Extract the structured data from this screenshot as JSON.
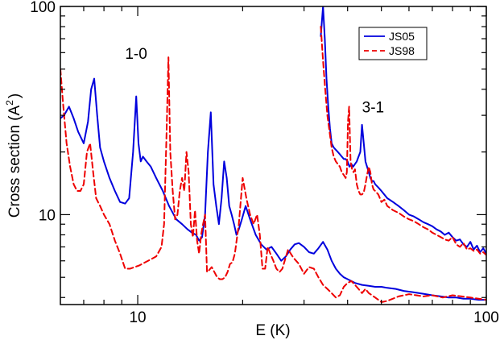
{
  "chart_data": {
    "type": "line",
    "xlabel": "E (K)",
    "ylabel": "Cross section (A",
    "ylabel_sup": "2",
    "ylabel_suffix": ")",
    "x_scale": "log",
    "y_scale": "log",
    "xlim": [
      6,
      100
    ],
    "ylim": [
      3.7,
      100
    ],
    "x_ticks": [
      {
        "value": 10,
        "label": "10"
      },
      {
        "value": 100,
        "label": "100"
      }
    ],
    "y_ticks": [
      {
        "value": 10,
        "label": "10"
      },
      {
        "value": 100,
        "label": "100"
      }
    ],
    "grid": false,
    "legend_position": "top-right",
    "annotations": [
      {
        "text": "1-0",
        "x": 9.2,
        "y": 56
      },
      {
        "text": "3-1",
        "x": 44,
        "y": 31
      }
    ],
    "series": [
      {
        "name": "JS05",
        "color": "#0000dd",
        "dash": "solid",
        "group": "1-0",
        "x": [
          6.0,
          6.15,
          6.35,
          6.55,
          6.75,
          7.0,
          7.2,
          7.35,
          7.5,
          7.65,
          7.8,
          8.0,
          8.3,
          8.6,
          8.9,
          9.2,
          9.45,
          9.7,
          9.9,
          10.05,
          10.2,
          10.35,
          10.6,
          10.9,
          11.3,
          11.8,
          12.3,
          12.9,
          13.4,
          13.9,
          14.3,
          14.7,
          15.0,
          15.3,
          15.6,
          15.9,
          16.2,
          16.5,
          16.8,
          17.1,
          17.4,
          17.7,
          18.0,
          18.3,
          18.6,
          18.9,
          19.2,
          19.5,
          19.9,
          20.4,
          21.0,
          21.8,
          22.6,
          23.4,
          24.2,
          25.0,
          25.8,
          26.6,
          27.4,
          28.2,
          29.0,
          30.0,
          31.0,
          32.0,
          33.0,
          34.0,
          35.0,
          36.0,
          37.0,
          38.0,
          39.0,
          40.0,
          42.0,
          44.0,
          46.0,
          48.0,
          50.0,
          52.0,
          55.0,
          58.0,
          61.0,
          64.0,
          67.0,
          70.0,
          74.0,
          78.0,
          82.0,
          86.0,
          90.0,
          95.0,
          100.0
        ],
        "y": [
          29,
          30,
          33,
          29,
          25,
          22,
          28,
          40,
          45,
          30,
          21,
          18,
          15,
          13,
          11.5,
          11.3,
          12,
          20,
          37,
          22,
          18,
          19,
          18,
          17,
          15,
          13,
          11,
          9.5,
          9,
          8.5,
          8.2,
          8.0,
          7.5,
          7.8,
          10,
          20,
          31,
          14,
          11,
          9,
          12,
          18,
          15,
          11,
          10,
          9,
          8,
          8.5,
          9.5,
          11,
          9.5,
          8.0,
          7.2,
          6.8,
          7.0,
          6.5,
          6.0,
          6.3,
          6.8,
          7.2,
          7.3,
          7.0,
          6.6,
          6.5,
          6.9,
          7.4,
          6.8,
          6.0,
          5.5,
          5.2,
          5.0,
          4.9,
          4.7,
          4.6,
          4.55,
          4.5,
          4.5,
          4.45,
          4.4,
          4.3,
          4.25,
          4.2,
          4.15,
          4.1,
          4.05,
          4.0,
          4.0,
          3.95,
          3.95,
          3.9,
          3.9
        ]
      },
      {
        "name": "JS98",
        "color": "#ee0000",
        "dash": "dashed",
        "group": "1-0",
        "x": [
          6.0,
          6.1,
          6.25,
          6.4,
          6.55,
          6.7,
          6.85,
          7.0,
          7.15,
          7.3,
          7.45,
          7.6,
          7.8,
          8.0,
          8.3,
          8.6,
          8.9,
          9.2,
          9.5,
          9.8,
          10.1,
          10.5,
          10.9,
          11.3,
          11.7,
          11.9,
          12.1,
          12.25,
          12.4,
          12.6,
          12.8,
          13.0,
          13.2,
          13.4,
          13.6,
          13.8,
          14.0,
          14.2,
          14.4,
          14.6,
          14.8,
          15.0,
          15.2,
          15.4,
          15.6,
          15.8,
          16.0,
          16.3,
          16.6,
          16.9,
          17.2,
          17.5,
          17.8,
          18.1,
          18.4,
          18.7,
          19.0,
          19.5,
          20.0,
          20.5,
          21.0,
          21.5,
          22.0,
          22.4,
          22.8,
          23.2,
          23.6,
          24.0,
          24.5,
          25.0,
          25.5,
          26.0,
          27.0,
          28.0,
          29.0,
          30.0,
          31.0,
          32.0,
          33.0,
          34.0,
          35.0,
          36.0,
          37.0,
          38.0,
          39.0,
          40.0,
          41.0,
          42.0,
          43.0,
          44.0,
          45.0,
          46.0,
          47.0,
          48.0,
          49.0,
          50.0,
          52.0,
          54.0,
          56.0,
          58.0,
          60.0,
          63.0,
          66.0,
          70.0,
          75.0,
          80.0,
          85.0,
          90.0,
          95.0,
          100.0
        ],
        "y": [
          50,
          35,
          22,
          17,
          14,
          13,
          13,
          14,
          20,
          22,
          16,
          12,
          11,
          10,
          9,
          7.5,
          6.5,
          5.5,
          5.5,
          5.6,
          5.7,
          5.9,
          6.1,
          6.3,
          7.0,
          9,
          25,
          57,
          20,
          13,
          9.5,
          10,
          13,
          15,
          13,
          20,
          16,
          9,
          7.8,
          10.5,
          7.5,
          6.5,
          8,
          9,
          10,
          5.3,
          5.4,
          5.6,
          5.3,
          5.0,
          4.9,
          4.9,
          5.0,
          5.3,
          5.8,
          5.9,
          6.5,
          9,
          15,
          12,
          10,
          9,
          10,
          8,
          5.5,
          5.5,
          7,
          6.5,
          6.0,
          5.5,
          5.3,
          5.5,
          6.8,
          6.2,
          5.8,
          5.2,
          5.6,
          5.5,
          5.0,
          4.6,
          4.4,
          4.2,
          4.0,
          4.1,
          4.5,
          4.7,
          4.8,
          4.6,
          4.4,
          4.2,
          4.4,
          4.2,
          4.1,
          4.0,
          3.9,
          3.8,
          3.85,
          3.95,
          4.05,
          4.1,
          4.15,
          4.1,
          4.05,
          4.1,
          4.0,
          4.1,
          4.05,
          4.0,
          3.95,
          3.9
        ]
      },
      {
        "name": "JS05",
        "color": "#0000dd",
        "dash": "solid",
        "group": "3-1",
        "x": [
          33.5,
          34.0,
          34.4,
          34.8,
          35.2,
          35.6,
          36.0,
          36.5,
          37.0,
          37.5,
          38.0,
          38.5,
          39.0,
          39.5,
          40.0,
          40.5,
          41.0,
          41.5,
          42.0,
          42.5,
          43.0,
          43.5,
          44.0,
          44.5,
          45.0,
          45.5,
          46.0,
          46.5,
          47.0,
          47.5,
          48.0,
          49.0,
          50.0,
          52.0,
          54.0,
          56.0,
          58.0,
          60.0,
          62.0,
          64.0,
          66.0,
          68.0,
          70.0,
          72.0,
          74.0,
          76.0,
          78.0,
          80.0,
          82.0,
          84.0,
          86.0,
          88.0,
          90.0,
          92.0,
          94.0,
          96.0,
          98.0,
          100.0
        ],
        "y": [
          72,
          100,
          70,
          45,
          33,
          26,
          22,
          21,
          20.5,
          20,
          19.5,
          19,
          18.5,
          18.5,
          18,
          17,
          17.5,
          17,
          17.5,
          18,
          19,
          20,
          27,
          22,
          18,
          17,
          16,
          15,
          14.5,
          14.5,
          14,
          13.5,
          13,
          12,
          11.5,
          11,
          10.5,
          10,
          9.8,
          9.5,
          9.2,
          9.0,
          8.8,
          8.5,
          8.3,
          8.0,
          8.2,
          7.8,
          7.5,
          7.6,
          7.2,
          7.0,
          7.4,
          6.8,
          7.1,
          6.6,
          6.9,
          6.5
        ]
      },
      {
        "name": "JS98",
        "color": "#ee0000",
        "dash": "dashed",
        "group": "3-1",
        "x": [
          33.5,
          34.0,
          34.5,
          35.0,
          35.5,
          36.0,
          36.5,
          37.0,
          37.5,
          38.0,
          38.5,
          39.0,
          39.5,
          39.8,
          40.1,
          40.4,
          40.8,
          41.2,
          41.6,
          42.0,
          42.5,
          43.0,
          43.5,
          44.0,
          44.5,
          45.0,
          45.5,
          46.0,
          46.5,
          47.0,
          47.5,
          48.0,
          49.0,
          50.0,
          51.0,
          52.0,
          54.0,
          56.0,
          58.0,
          60.0,
          62.0,
          64.0,
          66.0,
          68.0,
          70.0,
          72.0,
          74.0,
          76.0,
          78.0,
          80.0,
          82.0,
          84.0,
          86.0,
          88.0,
          90.0,
          92.0,
          94.0,
          96.0,
          98.0,
          100.0
        ],
        "y": [
          80,
          55,
          40,
          30,
          25,
          21,
          19,
          18,
          17.5,
          17,
          16,
          15.5,
          15,
          16,
          28,
          33,
          18,
          16.5,
          16,
          16.5,
          14,
          13,
          12.5,
          12.5,
          12.8,
          14,
          15.5,
          17,
          16,
          14,
          13.2,
          13,
          12.5,
          11.5,
          11.8,
          11,
          10.5,
          10.2,
          9.8,
          9.5,
          9.3,
          9.0,
          8.7,
          8.5,
          8.2,
          8.0,
          7.8,
          7.6,
          7.5,
          7.8,
          7.2,
          7.0,
          7.3,
          6.8,
          6.9,
          6.7,
          6.8,
          6.5,
          6.6,
          6.4
        ]
      }
    ]
  }
}
